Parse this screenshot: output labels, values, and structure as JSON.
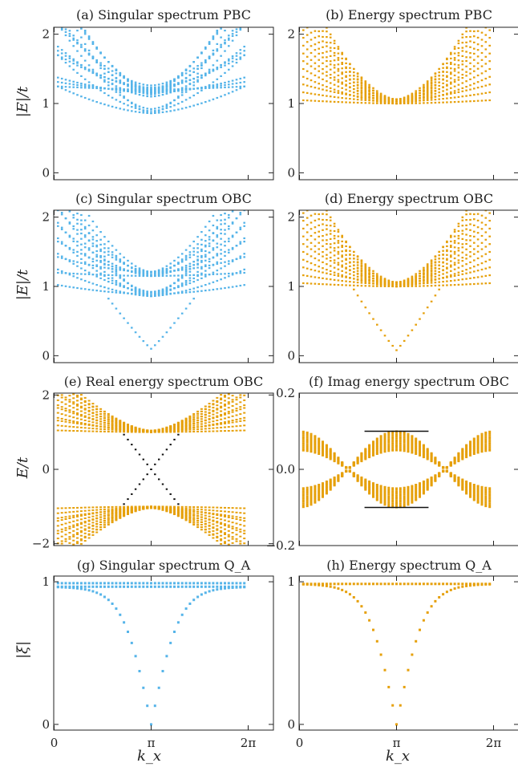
{
  "colors": {
    "blue": "#55b4e9",
    "orange": "#e6a00a",
    "black": "#111111"
  },
  "figure": {
    "xlabel": "k_x",
    "xticks": [
      "0",
      "π",
      "2π"
    ]
  },
  "panels": [
    {
      "title": "(a) Singular spectrum PBC",
      "ylabel": "|E|/t",
      "yticks": [
        "0",
        "1",
        "2"
      ],
      "ylim": [
        -0.1,
        2.1
      ],
      "xticks_shown": false,
      "color_key": "blue",
      "chart_data": {
        "type": "scatter",
        "family": "bands",
        "min_values": [
          1.2,
          1.15,
          1.1,
          0.86
        ],
        "max_value": 2.1
      }
    },
    {
      "title": "(b) Energy spectrum PBC",
      "ylabel": "",
      "yticks": [
        "0",
        "1",
        "2"
      ],
      "ylim": [
        -0.1,
        2.1
      ],
      "xticks_shown": false,
      "color_key": "orange",
      "chart_data": {
        "type": "scatter",
        "family": "bands",
        "min_values": [
          1.0
        ],
        "max_value": 2.1
      }
    },
    {
      "title": "(c) Singular spectrum OBC",
      "ylabel": "|E|/t",
      "yticks": [
        "0",
        "1",
        "2"
      ],
      "ylim": [
        -0.1,
        2.1
      ],
      "xticks_shown": false,
      "color_key": "blue",
      "chart_data": {
        "type": "scatter",
        "family": "bands",
        "min_values": [
          1.15,
          0.86
        ],
        "max_value": 2.1,
        "edge_state": {
          "min": 0.1,
          "max": 0.86
        }
      }
    },
    {
      "title": "(d) Energy spectrum OBC",
      "ylabel": "",
      "yticks": [
        "0",
        "1",
        "2"
      ],
      "ylim": [
        -0.1,
        2.1
      ],
      "xticks_shown": false,
      "color_key": "orange",
      "chart_data": {
        "type": "scatter",
        "family": "bands",
        "min_values": [
          1.0
        ],
        "max_value": 2.1,
        "edge_state": {
          "min": 0.08,
          "max": 1.0
        }
      }
    },
    {
      "title": "(e) Real energy spectrum OBC",
      "ylabel": "E/t",
      "yticks": [
        "−2",
        "0",
        "2"
      ],
      "ylim": [
        -2.05,
        2.05
      ],
      "xticks_shown": false,
      "color_key": "orange",
      "chart_data": {
        "type": "scatter",
        "family": "real_bands",
        "gap": 1.0,
        "max_value": 2.05,
        "crossing": {
          "from": 0.7,
          "to": 1.3
        }
      }
    },
    {
      "title": "(f) Imag energy spectrum OBC",
      "ylabel": "",
      "yticks": [
        "−0.2",
        "0.0",
        "0.2"
      ],
      "ylim": [
        -0.2,
        0.2
      ],
      "xticks_shown": false,
      "color_key": "orange",
      "chart_data": {
        "type": "scatter",
        "family": "imag_bands",
        "amplitude": 0.1,
        "flat_lines": [
          0.1,
          -0.1
        ],
        "flat_range": [
          0.67,
          1.33
        ]
      }
    },
    {
      "title": "(g) Singular spectrum Q_A",
      "ylabel": "|ξ|",
      "yticks": [
        "0",
        "1"
      ],
      "ylim": [
        -0.04,
        1.04
      ],
      "xticks_shown": true,
      "color_key": "blue",
      "chart_data": {
        "type": "scatter",
        "family": "dip",
        "top_values": [
          0.99,
          0.965
        ],
        "dip_min": 0.0
      }
    },
    {
      "title": "(h) Energy spectrum Q_A",
      "ylabel": "",
      "yticks": [
        "0",
        "1"
      ],
      "ylim": [
        -0.04,
        1.04
      ],
      "xticks_shown": true,
      "color_key": "orange",
      "chart_data": {
        "type": "scatter",
        "family": "dip",
        "top_values": [
          0.985
        ],
        "dip_min": 0.0
      }
    }
  ]
}
